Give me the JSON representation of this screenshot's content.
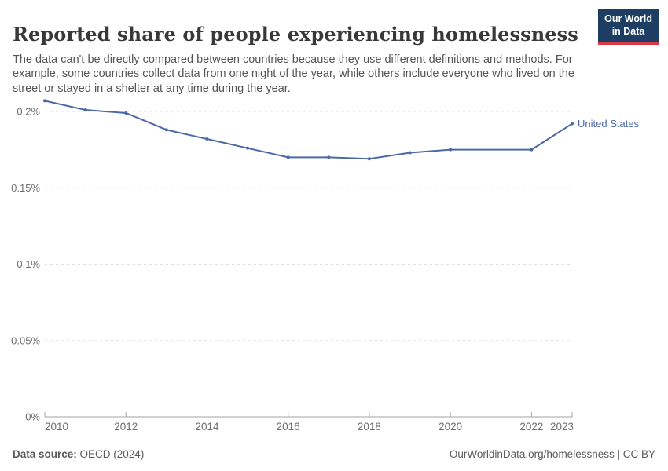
{
  "header": {
    "title": "Reported share of people experiencing homelessness",
    "subtitle": "The data can't be directly compared between countries because they use different definitions and methods. For example, some countries collect data from one night of the year, while others include everyone who lived on the street or stayed in a shelter at any time during the year.",
    "logo": {
      "line1": "Our World",
      "line2": "in Data"
    }
  },
  "chart_data": {
    "type": "line",
    "title": "Reported share of people experiencing homelessness",
    "xlabel": "",
    "ylabel": "",
    "unit": "%",
    "x_range": [
      2010,
      2023
    ],
    "ylim": [
      0,
      0.2
    ],
    "grid": "horizontal-dashed",
    "legend_position": "end-of-line-label",
    "series": [
      {
        "name": "United States",
        "points": [
          [
            2010,
            0.207
          ],
          [
            2011,
            0.201
          ],
          [
            2012,
            0.199
          ],
          [
            2013,
            0.188
          ],
          [
            2014,
            0.182
          ],
          [
            2015,
            0.176
          ],
          [
            2016,
            0.17
          ],
          [
            2017,
            0.17
          ],
          [
            2018,
            0.169
          ],
          [
            2019,
            0.173
          ],
          [
            2020,
            0.175
          ],
          [
            2022,
            0.175
          ],
          [
            2023,
            0.192
          ]
        ]
      }
    ],
    "yticks": [
      {
        "v": 0,
        "label": "0%"
      },
      {
        "v": 0.05,
        "label": "0.05%"
      },
      {
        "v": 0.1,
        "label": "0.1%"
      },
      {
        "v": 0.15,
        "label": "0.15%"
      },
      {
        "v": 0.2,
        "label": "0.2%"
      }
    ],
    "xticks": [
      {
        "v": 2010,
        "label": "2010",
        "anchor": "start"
      },
      {
        "v": 2012,
        "label": "2012",
        "anchor": "middle"
      },
      {
        "v": 2014,
        "label": "2014",
        "anchor": "middle"
      },
      {
        "v": 2016,
        "label": "2016",
        "anchor": "middle"
      },
      {
        "v": 2018,
        "label": "2018",
        "anchor": "middle"
      },
      {
        "v": 2020,
        "label": "2020",
        "anchor": "middle"
      },
      {
        "v": 2022,
        "label": "2022",
        "anchor": "middle"
      },
      {
        "v": 2023,
        "label": "2023",
        "anchor": "end"
      }
    ]
  },
  "footer": {
    "source_label": "Data source:",
    "source_value": " OECD (2024)",
    "attribution": "OurWorldinData.org/homelessness | CC BY"
  },
  "colors": {
    "line": "#4b69a5",
    "grid": "#dedede",
    "axis": "#a3a3a3",
    "tick_label": "#6e6e6e",
    "title_color": "#383838",
    "subtitle_color": "#555555",
    "footer_color": "#5a5a5a",
    "logo_bg": "#1d3d63",
    "logo_accent": "#d93a4a"
  }
}
